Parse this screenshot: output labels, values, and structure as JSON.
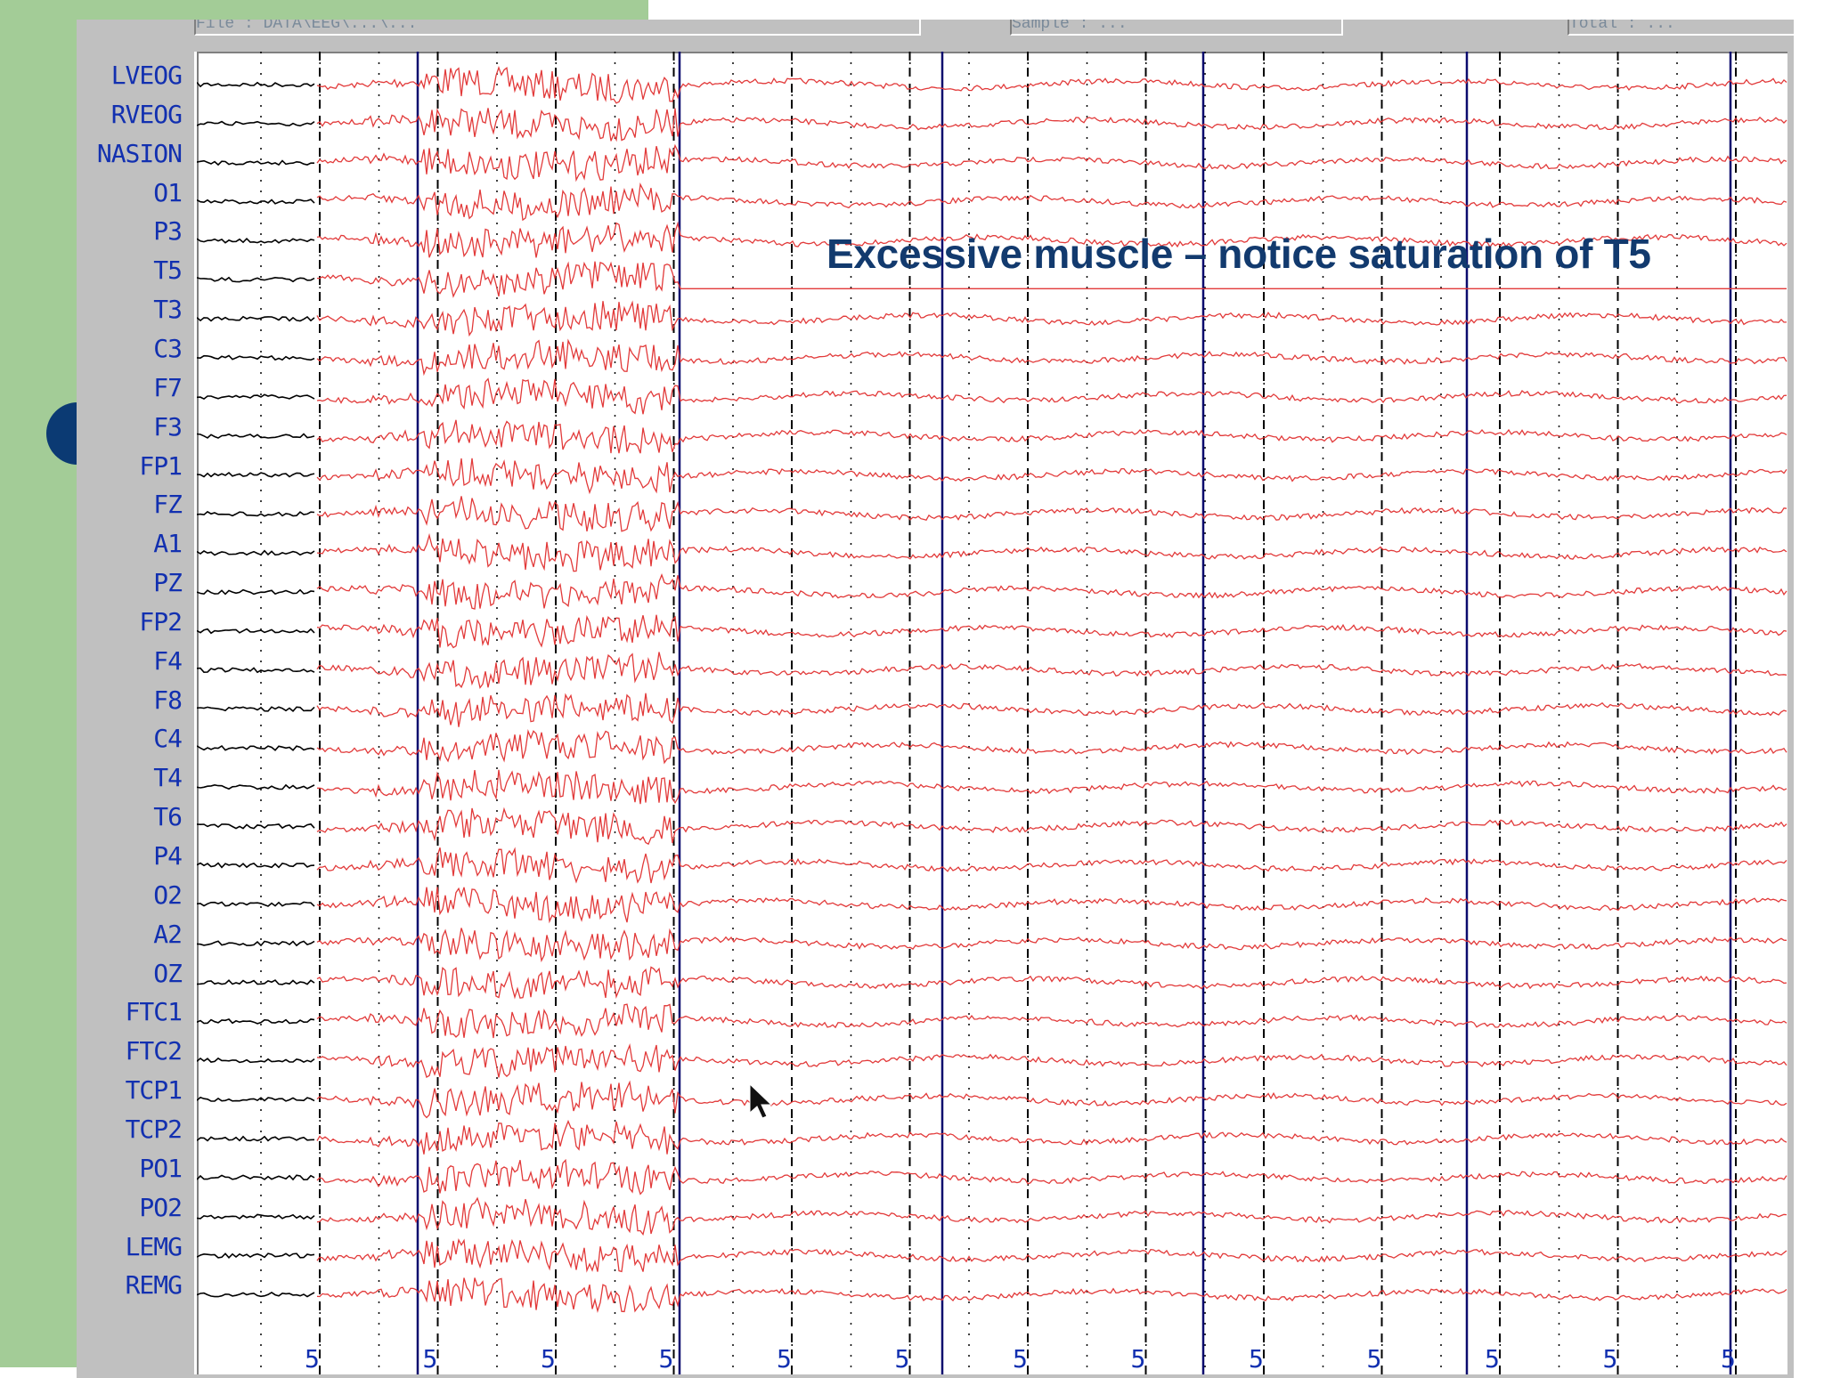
{
  "header": {
    "file_field": "File : DATA\\EEG\\...\\...",
    "epoch_field": "Sample : ...",
    "total_field": "Total : ..."
  },
  "channels": [
    "LVEOG",
    "RVEOG",
    "NASION",
    "O1",
    "P3",
    "T5",
    "T3",
    "C3",
    "F7",
    "F3",
    "FP1",
    "FZ",
    "A1",
    "PZ",
    "FP2",
    "F4",
    "F8",
    "C4",
    "T4",
    "T6",
    "P4",
    "O2",
    "A2",
    "OZ",
    "FTC1",
    "FTC2",
    "TCP1",
    "TCP2",
    "PO1",
    "PO2",
    "LEMG",
    "REMG"
  ],
  "annotation": "Excessive muscle – notice saturation of T5",
  "time_labels": [
    "5",
    "5",
    "5",
    "5",
    "5",
    "5",
    "5",
    "5",
    "5",
    "5",
    "5",
    "5",
    "5"
  ],
  "colors": {
    "slide_green": "#a3cc97",
    "bullet": "#0b3a73",
    "trace_red": "#e23a3a",
    "trace_black": "#000000",
    "second_line": "#0b0b6e",
    "label_blue": "#1230b0",
    "annotation": "#123a6e"
  },
  "icons": {
    "cursor": "mouse-pointer-icon"
  }
}
